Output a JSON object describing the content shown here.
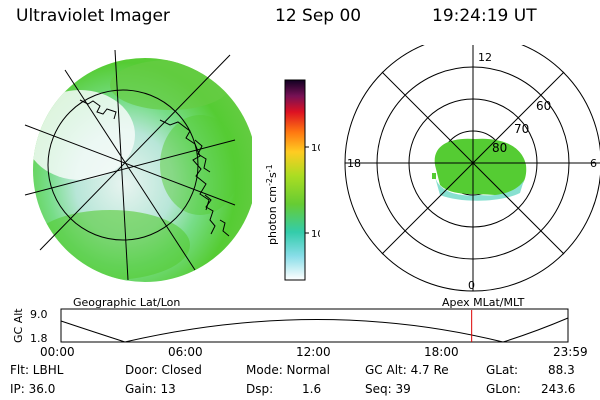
{
  "header": {
    "instrument": "Ultraviolet Imager",
    "date": "12 Sep 00",
    "time": "19:24:19 UT"
  },
  "colorbar": {
    "unit_label": "photon cm",
    "unit_exp1": "-2",
    "unit_s": "s",
    "unit_exp2": "-1",
    "ticks": [
      "100",
      "10"
    ]
  },
  "polar_plot": {
    "mlt_labels": {
      "top": "12",
      "left": "18",
      "right": "6",
      "bottom": "0"
    },
    "lat_labels": [
      "60",
      "70",
      "80"
    ]
  },
  "captions": {
    "left": "Geographic Lat/Lon",
    "right": "Apex MLat/MLT"
  },
  "orbit_plot": {
    "ylabel": "GC Alt",
    "y_ticks": [
      "9.0",
      "1.8"
    ],
    "x_ticks": [
      "00:00",
      "06:00",
      "12:00",
      "18:00",
      "23:59"
    ],
    "current_time_marker_fraction": 0.81
  },
  "info": {
    "flt": "Flt: LBHL",
    "ip": "IP: 36.0",
    "door": "Door: Closed",
    "gain": "Gain: 13",
    "mode": "Mode: Normal",
    "dsp_label": "Dsp:",
    "dsp_value": "1.6",
    "gcalt": "GC Alt: 4.7 Re",
    "seq": "Seq: 39",
    "glat_label": "GLat:",
    "glat_value": "88.3",
    "glon_label": "GLon:",
    "glon_value": "243.6"
  },
  "colors": {
    "aurora_green": "#55cc33",
    "aurora_cyan": "#55ddcc",
    "marker_red": "#dd0000"
  }
}
